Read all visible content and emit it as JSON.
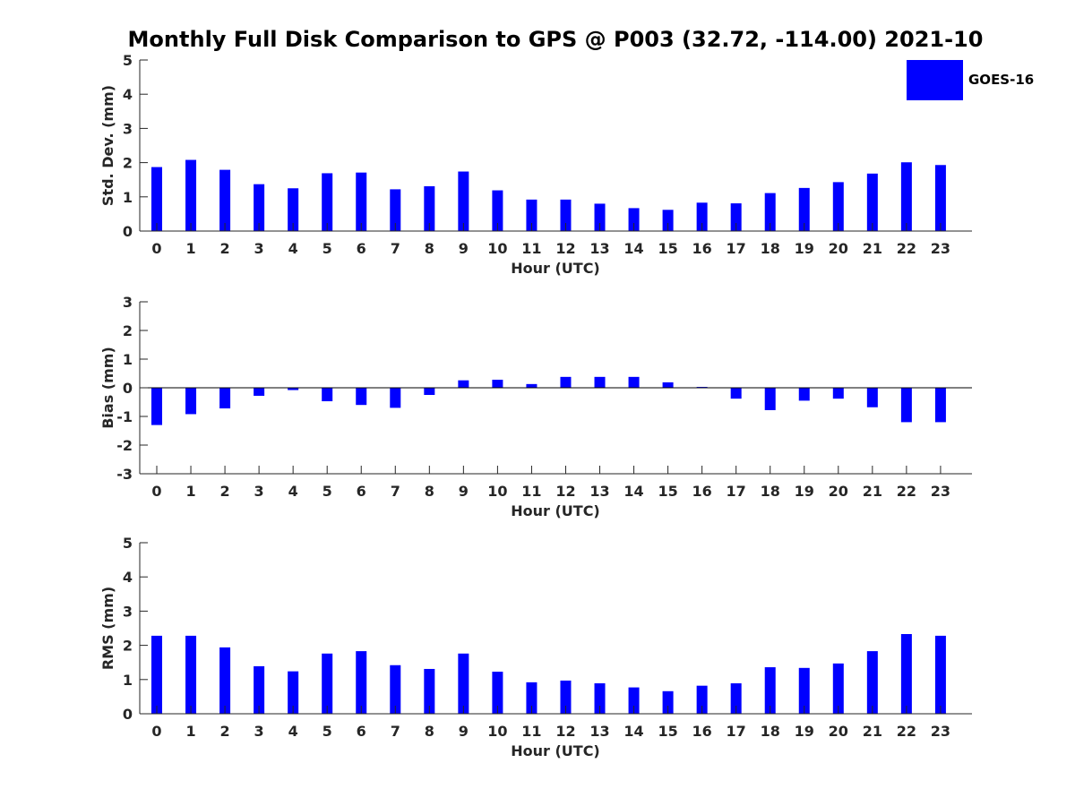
{
  "title": "Monthly Full Disk Comparison to GPS @ P003 (32.72, -114.00) 2021-10",
  "legend": {
    "label": "GOES-16",
    "color": "#0000ff"
  },
  "chart_data": [
    {
      "type": "bar",
      "xlabel": "Hour (UTC)",
      "ylabel": "Std. Dev. (mm)",
      "ylim": [
        0,
        5
      ],
      "yticks": [
        0,
        1,
        2,
        3,
        4,
        5
      ],
      "categories": [
        "0",
        "1",
        "2",
        "3",
        "4",
        "5",
        "6",
        "7",
        "8",
        "9",
        "10",
        "11",
        "12",
        "13",
        "14",
        "15",
        "16",
        "17",
        "18",
        "19",
        "20",
        "21",
        "22",
        "23"
      ],
      "series": [
        {
          "name": "GOES-16",
          "color": "#0000ff",
          "values": [
            1.87,
            2.08,
            1.79,
            1.37,
            1.25,
            1.69,
            1.71,
            1.22,
            1.31,
            1.74,
            1.19,
            0.92,
            0.92,
            0.8,
            0.67,
            0.62,
            0.83,
            0.81,
            1.11,
            1.26,
            1.43,
            1.68,
            2.01,
            1.93
          ]
        }
      ],
      "grid": false
    },
    {
      "type": "bar",
      "xlabel": "Hour (UTC)",
      "ylabel": "Bias (mm)",
      "ylim": [
        -3,
        3
      ],
      "yticks": [
        -3,
        -2,
        -1,
        0,
        1,
        2,
        3
      ],
      "categories": [
        "0",
        "1",
        "2",
        "3",
        "4",
        "5",
        "6",
        "7",
        "8",
        "9",
        "10",
        "11",
        "12",
        "13",
        "14",
        "15",
        "16",
        "17",
        "18",
        "19",
        "20",
        "21",
        "22",
        "23"
      ],
      "series": [
        {
          "name": "GOES-16",
          "color": "#0000ff",
          "values": [
            -1.3,
            -0.92,
            -0.72,
            -0.28,
            -0.08,
            -0.47,
            -0.6,
            -0.7,
            -0.25,
            0.26,
            0.28,
            0.13,
            0.38,
            0.38,
            0.38,
            0.19,
            0.03,
            -0.38,
            -0.78,
            -0.45,
            -0.38,
            -0.68,
            -1.2,
            -1.2
          ]
        }
      ],
      "grid": false
    },
    {
      "type": "bar",
      "xlabel": "Hour (UTC)",
      "ylabel": "RMS (mm)",
      "ylim": [
        0,
        5
      ],
      "yticks": [
        0,
        1,
        2,
        3,
        4,
        5
      ],
      "categories": [
        "0",
        "1",
        "2",
        "3",
        "4",
        "5",
        "6",
        "7",
        "8",
        "9",
        "10",
        "11",
        "12",
        "13",
        "14",
        "15",
        "16",
        "17",
        "18",
        "19",
        "20",
        "21",
        "22",
        "23"
      ],
      "series": [
        {
          "name": "GOES-16",
          "color": "#0000ff",
          "values": [
            2.28,
            2.28,
            1.94,
            1.39,
            1.24,
            1.76,
            1.83,
            1.42,
            1.31,
            1.76,
            1.23,
            0.92,
            0.97,
            0.89,
            0.77,
            0.66,
            0.82,
            0.89,
            1.36,
            1.34,
            1.47,
            1.83,
            2.33,
            2.28
          ]
        }
      ],
      "grid": false
    }
  ]
}
